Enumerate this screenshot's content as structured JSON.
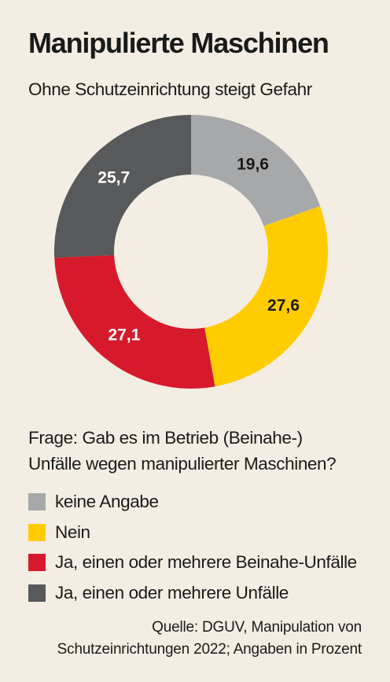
{
  "header": {
    "title": "Manipulierte Maschinen",
    "subtitle": "Ohne Schutzeinrichtung steigt Gefahr"
  },
  "question": {
    "line1": "Frage: Gab es im Betrieb (Beinahe-)",
    "line2": "Unfälle wegen manipulierter Maschinen?"
  },
  "source": {
    "line1": "Quelle: DGUV, Manipulation von",
    "line2": "Schutzeinrichtungen 2022; Angaben in Prozent"
  },
  "chart_data": {
    "type": "pie",
    "style": "donut",
    "start": "12 o'clock, clockwise",
    "title": "Manipulierte Maschinen",
    "subtitle": "Ohne Schutzeinrichtung steigt Gefahr",
    "categories": [
      "keine Angabe",
      "Nein",
      "Ja, einen oder mehrere Beinahe-Unfälle",
      "Ja, einen oder mehrere Unfälle"
    ],
    "values": [
      19.6,
      27.6,
      27.1,
      25.7
    ],
    "labels": [
      "19,6",
      "27,6",
      "27,1",
      "25,7"
    ],
    "colors": [
      "#a7a8aa",
      "#ffcc00",
      "#d71a2b",
      "#58595b"
    ],
    "label_colors": [
      "#1a1a1a",
      "#1a1a1a",
      "#ffffff",
      "#ffffff"
    ],
    "legend_position": "bottom-left",
    "unit": "Prozent"
  }
}
